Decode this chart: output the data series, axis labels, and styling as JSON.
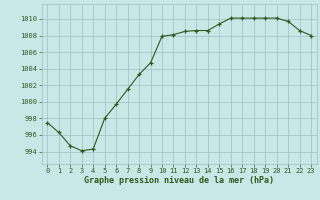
{
  "x": [
    0,
    1,
    2,
    3,
    4,
    5,
    6,
    7,
    8,
    9,
    10,
    11,
    12,
    13,
    14,
    15,
    16,
    17,
    18,
    19,
    20,
    21,
    22,
    23
  ],
  "y": [
    997.5,
    996.3,
    994.7,
    994.1,
    994.3,
    998.0,
    999.7,
    1001.5,
    1003.3,
    1004.7,
    1007.9,
    1008.1,
    1008.5,
    1008.6,
    1008.6,
    1009.4,
    1010.1,
    1010.1,
    1010.1,
    1010.1,
    1010.1,
    1009.7,
    1008.6,
    1008.0
  ],
  "line_color": "#2d5a1b",
  "marker": "+",
  "bg_color": "#c8e8e8",
  "grid_color": "#9bbfbf",
  "xlabel": "Graphe pression niveau de la mer (hPa)",
  "xlabel_color": "#2d5a1b",
  "ylabel_ticks": [
    994,
    996,
    998,
    1000,
    1002,
    1004,
    1006,
    1008,
    1010
  ],
  "xtick_labels": [
    "0",
    "1",
    "2",
    "3",
    "4",
    "5",
    "6",
    "7",
    "8",
    "9",
    "10",
    "11",
    "12",
    "13",
    "14",
    "15",
    "16",
    "17",
    "18",
    "19",
    "20",
    "21",
    "22",
    "23"
  ],
  "ylim": [
    992.5,
    1011.8
  ],
  "xlim": [
    -0.5,
    23.5
  ],
  "tick_color": "#2d5a1b",
  "font_color": "#2d5a1b"
}
